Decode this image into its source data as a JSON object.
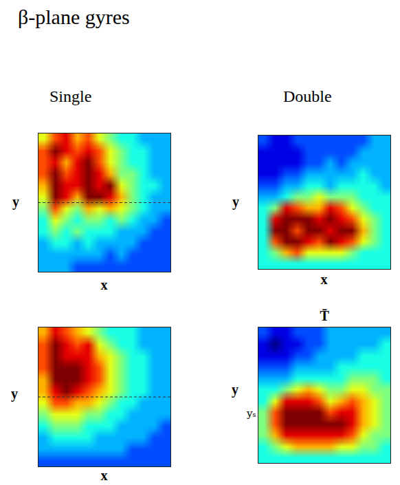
{
  "title": "β-plane gyres",
  "columns": [
    "Single",
    "Double"
  ],
  "chart_data": [
    {
      "type": "heatmap",
      "xlabel": "x",
      "ylabel": "y",
      "tick_labels": false,
      "xlim": [
        0,
        12
      ],
      "ylim": [
        12,
        0
      ],
      "zlim": [
        0,
        10
      ],
      "reference_line": {
        "y": 6,
        "line_style": "dashed"
      },
      "cells": [
        [
          6,
          8,
          9,
          7,
          8,
          6,
          5,
          4,
          4,
          3,
          3,
          3
        ],
        [
          8,
          10,
          9,
          8,
          9,
          8,
          6,
          5,
          4,
          4,
          3,
          3
        ],
        [
          8,
          9,
          7,
          9,
          10,
          8,
          6,
          5,
          4,
          4,
          3,
          3
        ],
        [
          8,
          10,
          8,
          9,
          10,
          9,
          7,
          5,
          5,
          4,
          3,
          3
        ],
        [
          7,
          10,
          9,
          9,
          10,
          9,
          10,
          6,
          5,
          4,
          4,
          3
        ],
        [
          6,
          10,
          9,
          7,
          10,
          10,
          9,
          7,
          5,
          4,
          3,
          3
        ],
        [
          5,
          8,
          6,
          5,
          7,
          6,
          7,
          6,
          5,
          4,
          3,
          3
        ],
        [
          4,
          6,
          5,
          4,
          5,
          5,
          4,
          5,
          4,
          3,
          3,
          2
        ],
        [
          4,
          5,
          4,
          5,
          4,
          4,
          4,
          3,
          3,
          3,
          2,
          2
        ],
        [
          3,
          4,
          4,
          3,
          4,
          3,
          3,
          3,
          3,
          2,
          2,
          2
        ],
        [
          3,
          3,
          3,
          3,
          3,
          3,
          2,
          3,
          2,
          2,
          2,
          2
        ],
        [
          3,
          3,
          3,
          2,
          2,
          2,
          2,
          2,
          2,
          2,
          2,
          2
        ]
      ]
    },
    {
      "type": "heatmap",
      "xlabel": "x",
      "ylabel": "y",
      "tick_labels": false,
      "xlim": [
        0,
        12
      ],
      "ylim": [
        12,
        0
      ],
      "zlim": [
        0,
        10
      ],
      "cells": [
        [
          2,
          1,
          1,
          2,
          2,
          2,
          2,
          2,
          2,
          2,
          3,
          3
        ],
        [
          1,
          1,
          1,
          1,
          2,
          2,
          2,
          2,
          2,
          3,
          3,
          3
        ],
        [
          1,
          1,
          1,
          1,
          2,
          2,
          3,
          2,
          3,
          3,
          3,
          3
        ],
        [
          1,
          1,
          2,
          2,
          3,
          3,
          3,
          3,
          3,
          4,
          3,
          3
        ],
        [
          2,
          2,
          3,
          3,
          4,
          4,
          3,
          4,
          4,
          4,
          4,
          3
        ],
        [
          3,
          3,
          4,
          5,
          5,
          6,
          5,
          5,
          5,
          4,
          4,
          4
        ],
        [
          4,
          5,
          9,
          8,
          7,
          7,
          9,
          8,
          6,
          5,
          4,
          4
        ],
        [
          4,
          9,
          10,
          10,
          10,
          9,
          10,
          9,
          8,
          6,
          5,
          4
        ],
        [
          4,
          10,
          10,
          8,
          10,
          10,
          9,
          10,
          10,
          7,
          5,
          4
        ],
        [
          4,
          8,
          10,
          10,
          9,
          8,
          10,
          9,
          8,
          6,
          5,
          4
        ],
        [
          4,
          5,
          7,
          8,
          6,
          6,
          6,
          6,
          5,
          4,
          4,
          4
        ],
        [
          4,
          4,
          4,
          4,
          4,
          4,
          4,
          4,
          4,
          4,
          4,
          4
        ]
      ]
    },
    {
      "type": "heatmap",
      "xlabel": "x",
      "ylabel": "y",
      "tick_labels": false,
      "xlim": [
        0,
        12
      ],
      "ylim": [
        12,
        0
      ],
      "zlim": [
        0,
        10
      ],
      "reference_line": {
        "y": 6,
        "line_style": "dashed"
      },
      "cells": [
        [
          7,
          9,
          8,
          7,
          6,
          5,
          4,
          4,
          4,
          3,
          3,
          3
        ],
        [
          8,
          10,
          9,
          8,
          9,
          6,
          5,
          4,
          4,
          3,
          3,
          3
        ],
        [
          8,
          10,
          9,
          9,
          9,
          7,
          6,
          5,
          4,
          4,
          3,
          3
        ],
        [
          8,
          10,
          10,
          10,
          9,
          8,
          6,
          5,
          4,
          4,
          3,
          3
        ],
        [
          7,
          10,
          10,
          10,
          9,
          8,
          6,
          5,
          4,
          4,
          3,
          3
        ],
        [
          7,
          9,
          10,
          9,
          8,
          7,
          6,
          5,
          4,
          4,
          3,
          3
        ],
        [
          6,
          8,
          8,
          7,
          7,
          6,
          5,
          4,
          4,
          3,
          3,
          3
        ],
        [
          5,
          6,
          6,
          6,
          5,
          5,
          4,
          4,
          3,
          3,
          3,
          3
        ],
        [
          4,
          5,
          5,
          5,
          4,
          4,
          4,
          3,
          3,
          3,
          3,
          2
        ],
        [
          3,
          4,
          4,
          4,
          4,
          3,
          3,
          3,
          3,
          3,
          2,
          2
        ],
        [
          3,
          3,
          3,
          3,
          3,
          3,
          3,
          3,
          2,
          2,
          2,
          2
        ],
        [
          2,
          2,
          2,
          2,
          2,
          2,
          2,
          2,
          2,
          2,
          2,
          2
        ]
      ]
    },
    {
      "type": "heatmap",
      "title": "T̄",
      "ylabel": "y",
      "tick_labels": "y",
      "xlim": [
        0,
        12
      ],
      "ylim": [
        12,
        0
      ],
      "zlim": [
        0,
        10
      ],
      "yticks": [
        {
          "value": 7.6,
          "label": "yₛ"
        }
      ],
      "cells": [
        [
          2,
          1,
          1,
          2,
          2,
          2,
          3,
          3,
          3,
          3,
          3,
          3
        ],
        [
          1,
          0,
          1,
          1,
          2,
          2,
          3,
          3,
          3,
          3,
          3,
          4
        ],
        [
          1,
          1,
          1,
          2,
          2,
          3,
          3,
          3,
          3,
          4,
          4,
          4
        ],
        [
          2,
          2,
          2,
          3,
          3,
          3,
          3,
          4,
          4,
          4,
          4,
          4
        ],
        [
          3,
          3,
          3,
          4,
          4,
          4,
          4,
          4,
          5,
          5,
          5,
          4
        ],
        [
          4,
          4,
          5,
          6,
          7,
          6,
          5,
          5,
          6,
          6,
          5,
          5
        ],
        [
          4,
          6,
          9,
          9,
          9,
          8,
          6,
          7,
          8,
          7,
          6,
          5
        ],
        [
          5,
          8,
          10,
          10,
          10,
          10,
          8,
          9,
          9,
          7,
          6,
          5
        ],
        [
          5,
          8,
          10,
          10,
          10,
          10,
          10,
          10,
          9,
          7,
          6,
          5
        ],
        [
          5,
          7,
          9,
          9,
          9,
          9,
          9,
          9,
          8,
          6,
          5,
          5
        ],
        [
          4,
          5,
          6,
          7,
          7,
          7,
          7,
          6,
          6,
          5,
          5,
          4
        ],
        [
          4,
          4,
          4,
          4,
          4,
          4,
          4,
          4,
          4,
          4,
          4,
          4
        ]
      ]
    }
  ]
}
